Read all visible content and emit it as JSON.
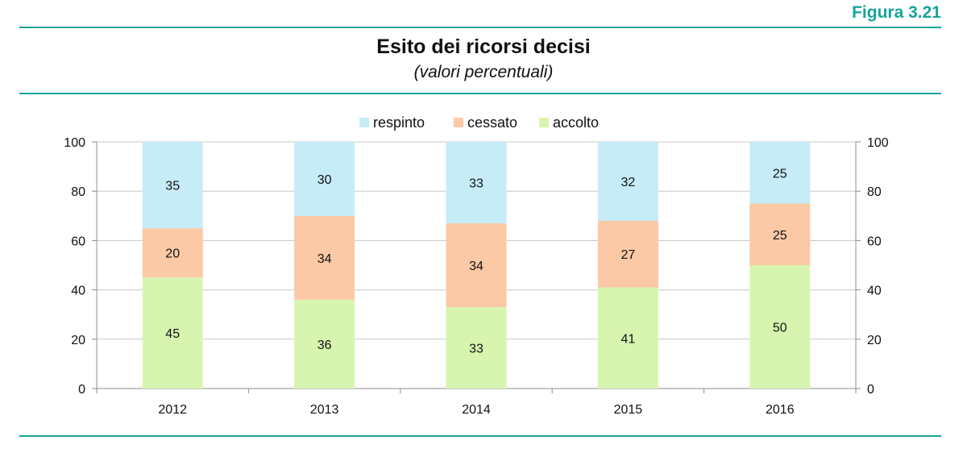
{
  "figure_label": "Figura 3.21",
  "colors": {
    "rule": "#1aa39a",
    "respinto": "#c6ecf8",
    "cessato": "#fbc9a6",
    "accolto": "#d8f5b0",
    "gridline": "#c8c8c8",
    "axis": "#8c8c8c"
  },
  "chart_data": {
    "type": "bar",
    "stacked": true,
    "title": "Esito dei ricorsi decisi",
    "subtitle": "(valori percentuali)",
    "categories": [
      "2012",
      "2013",
      "2014",
      "2015",
      "2016"
    ],
    "series": [
      {
        "name": "accolto",
        "color": "#d8f5b0",
        "values": [
          45,
          36,
          33,
          41,
          50
        ]
      },
      {
        "name": "cessato",
        "color": "#fbc9a6",
        "values": [
          20,
          34,
          34,
          27,
          25
        ]
      },
      {
        "name": "respinto",
        "color": "#c6ecf8",
        "values": [
          35,
          30,
          33,
          32,
          25
        ]
      }
    ],
    "legend_order": [
      "respinto",
      "cessato",
      "accolto"
    ],
    "ylim": [
      0,
      100
    ],
    "yticks": [
      0,
      20,
      40,
      60,
      80,
      100
    ],
    "xlabel": "",
    "ylabel": "",
    "grid": true,
    "legend_position": "top-center",
    "secondary_y_axis": true
  }
}
